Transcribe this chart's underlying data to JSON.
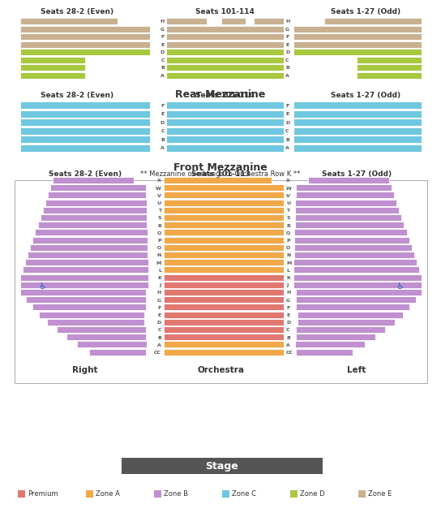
{
  "colors": {
    "premium": "#e07870",
    "zone_a": "#f0a848",
    "zone_b": "#c090d0",
    "zone_c": "#70c8e0",
    "zone_d": "#a8c840",
    "zone_e": "#c8b090",
    "stage": "#555555",
    "bg": "#ffffff",
    "text": "#333333",
    "row_label": "#555555"
  },
  "rear_mezz": {
    "left_label": "Seats 28-2 (Even)",
    "center_label": "Seats 101-114",
    "right_label": "Seats 1-27 (Odd)",
    "title": "Rear Mezzanine",
    "rows": [
      "H",
      "G",
      "F",
      "E",
      "D",
      "C",
      "B",
      "A"
    ],
    "zone_e_rows": [
      "H",
      "G",
      "F",
      "E"
    ],
    "zone_d_rows": [
      "D",
      "C",
      "B",
      "A"
    ]
  },
  "front_mezz": {
    "left_label": "Seats 28-2 (Even)",
    "center_label": "Seats 101-114",
    "right_label": "Seats 1-27 (Odd)",
    "title": "Front Mezzanine",
    "subtitle": "** Mezzanine overhangs to Orchestra Row K **",
    "rows": [
      "F",
      "E",
      "D",
      "C",
      "B",
      "A"
    ]
  },
  "orchestra": {
    "left_label": "Seats 28-2 (Even)",
    "center_label": "Seats 101-113",
    "right_label": "Seats 1-27 (Odd)",
    "label_left": "Right",
    "label_center": "Orchestra",
    "label_right": "Left",
    "upper_rows": [
      "X",
      "W",
      "V",
      "U",
      "T",
      "S",
      "R",
      "Q",
      "P",
      "O",
      "N",
      "M",
      "L",
      "K"
    ],
    "lower_rows": [
      "J",
      "H",
      "G",
      "F",
      "E",
      "D",
      "C",
      "B",
      "A",
      "CC"
    ],
    "premium_rows": [
      "K",
      "J",
      "H",
      "G",
      "F",
      "E"
    ],
    "zone_a_lower": [
      "D",
      "C",
      "B",
      "A",
      "CC"
    ]
  }
}
